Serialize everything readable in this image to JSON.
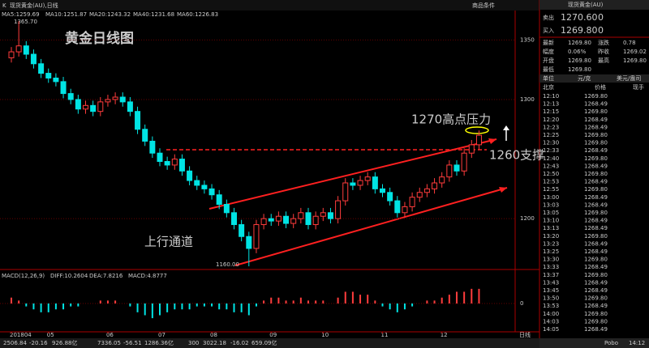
{
  "header": {
    "symbol_icon": "K",
    "symbol": "现货黄金(AU),日线",
    "ma_labels": [
      "MA5:1259.69",
      "MA10:1251.87",
      "MA20:1243.32",
      "MA40:1231.68",
      "MA60:1226.83"
    ],
    "tools": "商品条件"
  },
  "chart_data": [
    {
      "type": "candlestick",
      "title": "黄金日线图",
      "categories": [
        "201804",
        null,
        null,
        null,
        null,
        "05",
        null,
        null,
        null,
        null,
        null,
        null,
        null,
        "06",
        null,
        null,
        null,
        null,
        null,
        null,
        "07",
        null,
        null,
        null,
        null,
        null,
        null,
        "08",
        null,
        null,
        null,
        null,
        null,
        null,
        null,
        "09",
        null,
        null,
        null,
        null,
        null,
        null,
        "10",
        null,
        null,
        null,
        null,
        null,
        null,
        null,
        "11",
        null,
        null,
        null,
        null,
        null,
        null,
        null,
        "12",
        null,
        null,
        null,
        null,
        null
      ],
      "x_label": "日线",
      "open": [
        1335,
        1340,
        1345,
        1338,
        1330,
        1322,
        1318,
        1315,
        1305,
        1300,
        1292,
        1295,
        1290,
        1298,
        1300,
        1302,
        1298,
        1290,
        1275,
        1265,
        1255,
        1248,
        1245,
        1250,
        1240,
        1232,
        1228,
        1225,
        1220,
        1212,
        1205,
        1195,
        1185,
        1175,
        1195,
        1200,
        1198,
        1202,
        1196,
        1200,
        1205,
        1195,
        1202,
        1205,
        1200,
        1215,
        1230,
        1228,
        1232,
        1235,
        1225,
        1222,
        1215,
        1205,
        1210,
        1218,
        1222,
        1225,
        1230,
        1235,
        1245,
        1240,
        1255,
        1262
      ],
      "high": [
        1344,
        1365.7,
        1349,
        1342,
        1334,
        1326,
        1322,
        1319,
        1309,
        1304,
        1299,
        1299,
        1302,
        1304,
        1306,
        1306,
        1302,
        1294,
        1279,
        1269,
        1259,
        1252,
        1254,
        1254,
        1244,
        1236,
        1232,
        1229,
        1224,
        1216,
        1209,
        1199,
        1189,
        1199,
        1204,
        1204,
        1206,
        1206,
        1204,
        1209,
        1209,
        1206,
        1209,
        1209,
        1219,
        1234,
        1234,
        1236,
        1239,
        1239,
        1229,
        1226,
        1219,
        1214,
        1222,
        1226,
        1229,
        1234,
        1239,
        1249,
        1249,
        1259,
        1266,
        1274
      ],
      "low": [
        1331,
        1336,
        1334,
        1326,
        1318,
        1314,
        1311,
        1301,
        1296,
        1288,
        1288,
        1286,
        1286,
        1294,
        1296,
        1294,
        1286,
        1271,
        1261,
        1251,
        1244,
        1241,
        1241,
        1236,
        1228,
        1224,
        1221,
        1216,
        1208,
        1201,
        1191,
        1181,
        1160,
        1171,
        1191,
        1194,
        1194,
        1192,
        1192,
        1196,
        1191,
        1191,
        1198,
        1196,
        1196,
        1211,
        1224,
        1224,
        1228,
        1221,
        1218,
        1211,
        1201,
        1201,
        1206,
        1214,
        1218,
        1221,
        1226,
        1231,
        1236,
        1236,
        1251,
        1258
      ],
      "close": [
        1340,
        1345,
        1338,
        1330,
        1322,
        1318,
        1315,
        1305,
        1300,
        1292,
        1295,
        1290,
        1298,
        1300,
        1302,
        1298,
        1290,
        1275,
        1265,
        1255,
        1248,
        1245,
        1250,
        1240,
        1232,
        1228,
        1225,
        1220,
        1212,
        1205,
        1195,
        1185,
        1175,
        1195,
        1200,
        1198,
        1202,
        1196,
        1200,
        1205,
        1195,
        1202,
        1205,
        1200,
        1215,
        1230,
        1228,
        1232,
        1235,
        1225,
        1222,
        1215,
        1205,
        1210,
        1218,
        1222,
        1225,
        1230,
        1235,
        1245,
        1240,
        1255,
        1262,
        1270
      ],
      "ylim": [
        1158,
        1374
      ],
      "yticks": [
        1200,
        1300,
        1350
      ],
      "grid": true,
      "up_color": "#ff3c3c",
      "down_color": "#00e4e4",
      "annotations": {
        "high_label": "1365.70",
        "low_label": "1160.00",
        "resistance": "1270高点压力",
        "support": "1260支撑",
        "channel": "上行通道"
      }
    },
    {
      "type": "bar",
      "title": "MACD(12,26,9)",
      "stats": [
        "DIFF:10.2604",
        "DEA:7.8216",
        "MACD:4.8777"
      ],
      "values": [
        2,
        1,
        -1,
        -2,
        -3,
        -3,
        -2,
        -2,
        -1,
        -1,
        0,
        0,
        1,
        1,
        1,
        0,
        -1,
        -3,
        -4,
        -5,
        -4,
        -3,
        -2,
        -2,
        -2,
        -1,
        -1,
        -1,
        -2,
        -2,
        -3,
        -3,
        -4,
        -1,
        1,
        2,
        2,
        1,
        1,
        2,
        1,
        1,
        1,
        0,
        2,
        4,
        4,
        3,
        3,
        1,
        -1,
        -2,
        -3,
        -2,
        -1,
        0,
        1,
        1,
        2,
        3,
        4,
        4,
        5,
        5
      ],
      "ylim": [
        -8,
        8
      ],
      "yticks": [
        0
      ]
    }
  ],
  "quote": {
    "title": "现货黄金(AU)",
    "sell_label": "卖出",
    "sell": "1270.60",
    "sell_qty": "0",
    "buy_label": "买入",
    "buy": "1269.80",
    "buy_qty": "0",
    "stats": [
      [
        "最新",
        "1269.80",
        "涨跌",
        "0.78"
      ],
      [
        "幅度",
        "0.06%",
        "昨收",
        "1269.02"
      ],
      [
        "开盘",
        "1269.80",
        "最高",
        "1269.80"
      ],
      [
        "最低",
        "1269.80"
      ]
    ],
    "unit_row": [
      "单位",
      "元/克",
      "美元/盎司"
    ],
    "columns": [
      "北京",
      "价格",
      "现手"
    ],
    "ticks": [
      [
        "12:10",
        "1269.80"
      ],
      [
        "12:13",
        "1268.49"
      ],
      [
        "12:15",
        "1269.80"
      ],
      [
        "12:20",
        "1268.49"
      ],
      [
        "12:23",
        "1268.49"
      ],
      [
        "12:25",
        "1269.80"
      ],
      [
        "12:30",
        "1269.80"
      ],
      [
        "12:33",
        "1268.49"
      ],
      [
        "12:40",
        "1269.80"
      ],
      [
        "12:43",
        "1268.49"
      ],
      [
        "12:50",
        "1269.80"
      ],
      [
        "12:53",
        "1268.49"
      ],
      [
        "12:55",
        "1269.80"
      ],
      [
        "13:00",
        "1268.49"
      ],
      [
        "13:03",
        "1268.49"
      ],
      [
        "13:05",
        "1269.80"
      ],
      [
        "13:10",
        "1268.49"
      ],
      [
        "13:13",
        "1268.49"
      ],
      [
        "13:20",
        "1269.80"
      ],
      [
        "13:23",
        "1268.49"
      ],
      [
        "13:25",
        "1268.49"
      ],
      [
        "13:30",
        "1269.80"
      ],
      [
        "13:33",
        "1268.49"
      ],
      [
        "13:37",
        "1269.80"
      ],
      [
        "13:43",
        "1268.49"
      ],
      [
        "13:45",
        "1268.49"
      ],
      [
        "13:50",
        "1269.80"
      ],
      [
        "13:53",
        "1268.49"
      ],
      [
        "14:00",
        "1269.80"
      ],
      [
        "14:03",
        "1269.80"
      ],
      [
        "14:05",
        "1268.49"
      ]
    ]
  },
  "status_bar": {
    "items": [
      "2506.84",
      "-20.16",
      "926.88亿",
      "7336.05",
      "-56.51",
      "1286.36亿",
      "300",
      "3022.18",
      "-16.02",
      "659.09亿"
    ],
    "brand": "Pobo",
    "time": "14:12"
  }
}
